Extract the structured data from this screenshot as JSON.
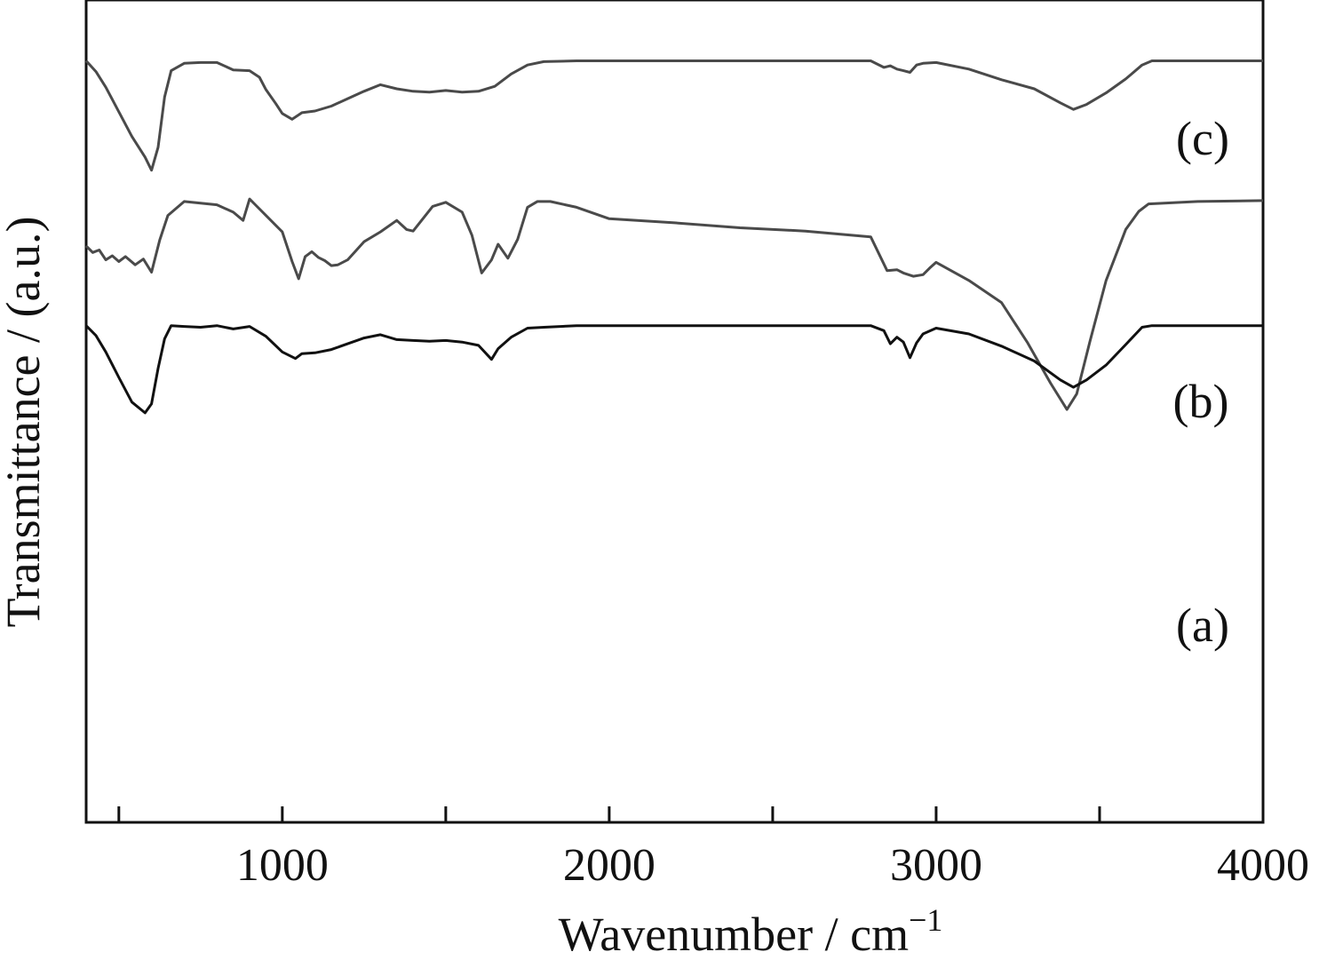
{
  "chart_data": {
    "type": "line",
    "xlabel": "Wavenumber / cm",
    "xlabel_superscript": "−1",
    "ylabel": "Transmittance / (a.u.)",
    "xlim": [
      400,
      4000
    ],
    "ylim": [
      0,
      100
    ],
    "x_major_ticks": [
      1000,
      2000,
      3000,
      4000
    ],
    "x_tick_labels": [
      "1000",
      "2000",
      "3000",
      "4000"
    ],
    "x_minor_ticks": [
      500,
      1500,
      2500,
      3500
    ],
    "grid": false,
    "legend": "none",
    "colors": {
      "a": "#4a4a4a",
      "b": "#111111",
      "c": "#4a4a4a",
      "frame": "#111111"
    },
    "series": [
      {
        "name": "(a)",
        "x": [
          400,
          420,
          440,
          460,
          480,
          500,
          520,
          550,
          575,
          600,
          625,
          650,
          700,
          750,
          800,
          850,
          880,
          900,
          920,
          950,
          1000,
          1030,
          1050,
          1070,
          1090,
          1110,
          1130,
          1150,
          1170,
          1200,
          1250,
          1300,
          1350,
          1380,
          1400,
          1430,
          1460,
          1500,
          1550,
          1580,
          1610,
          1640,
          1660,
          1690,
          1720,
          1750,
          1780,
          1820,
          1900,
          2000,
          2200,
          2400,
          2600,
          2800,
          2850,
          2880,
          2900,
          2930,
          2960,
          2980,
          3000,
          3100,
          3200,
          3280,
          3350,
          3400,
          3430,
          3470,
          3520,
          3580,
          3620,
          3650,
          3800,
          4000
        ],
        "y": [
          70.1,
          69.3,
          69.6,
          68.4,
          68.9,
          68.2,
          68.8,
          67.8,
          68.5,
          66.9,
          70.8,
          73.8,
          75.5,
          75.3,
          75.1,
          74.2,
          73.2,
          75.8,
          75.0,
          73.8,
          71.8,
          68.2,
          66.1,
          68.8,
          69.4,
          68.7,
          68.3,
          67.7,
          67.8,
          68.4,
          70.6,
          71.8,
          73.2,
          72.1,
          71.9,
          73.4,
          74.9,
          75.4,
          74.2,
          71.4,
          66.8,
          68.4,
          70.3,
          68.6,
          70.9,
          74.8,
          75.5,
          75.5,
          74.8,
          73.4,
          72.9,
          72.3,
          71.9,
          71.2,
          67.1,
          67.2,
          66.8,
          66.4,
          66.6,
          67.4,
          68.1,
          65.9,
          63.2,
          58.3,
          53.4,
          50.2,
          52.1,
          58.4,
          65.9,
          72.1,
          74.3,
          75.2,
          75.5,
          75.6
        ]
      },
      {
        "name": "(b)",
        "x": [
          400,
          430,
          460,
          500,
          540,
          580,
          600,
          620,
          640,
          660,
          700,
          750,
          800,
          850,
          900,
          950,
          1000,
          1040,
          1060,
          1100,
          1150,
          1200,
          1250,
          1300,
          1350,
          1400,
          1450,
          1500,
          1550,
          1600,
          1640,
          1660,
          1700,
          1750,
          1800,
          1900,
          2000,
          2400,
          2800,
          2840,
          2860,
          2880,
          2900,
          2920,
          2940,
          2960,
          3000,
          3100,
          3200,
          3300,
          3380,
          3420,
          3460,
          3520,
          3580,
          3630,
          3660,
          3800,
          4000
        ],
        "y": [
          60.4,
          59.2,
          57.2,
          54.1,
          51.1,
          49.8,
          50.9,
          55.2,
          58.8,
          60.4,
          60.3,
          60.2,
          60.4,
          60.0,
          60.3,
          59.1,
          57.2,
          56.4,
          57.0,
          57.1,
          57.5,
          58.2,
          58.9,
          59.3,
          58.7,
          58.6,
          58.5,
          58.6,
          58.4,
          58.0,
          56.3,
          57.6,
          59.0,
          60.1,
          60.2,
          60.4,
          60.4,
          60.4,
          60.4,
          59.8,
          58.2,
          59.0,
          58.4,
          56.5,
          58.3,
          59.4,
          60.1,
          59.4,
          57.9,
          56.1,
          53.8,
          52.9,
          53.8,
          55.6,
          58.1,
          60.2,
          60.4,
          60.4,
          60.4
        ]
      },
      {
        "name": "(c)",
        "x": [
          400,
          430,
          460,
          500,
          540,
          580,
          600,
          620,
          640,
          660,
          700,
          750,
          800,
          850,
          900,
          930,
          950,
          980,
          1000,
          1030,
          1060,
          1100,
          1150,
          1200,
          1250,
          1300,
          1350,
          1400,
          1450,
          1500,
          1550,
          1600,
          1650,
          1700,
          1750,
          1800,
          1900,
          2000,
          2400,
          2800,
          2840,
          2860,
          2880,
          2900,
          2920,
          2940,
          2960,
          3000,
          3100,
          3200,
          3300,
          3380,
          3420,
          3460,
          3520,
          3580,
          3630,
          3660,
          3800,
          4000
        ],
        "y": [
          92.6,
          91.3,
          89.4,
          86.4,
          83.4,
          80.9,
          79.3,
          82.1,
          88.2,
          91.4,
          92.3,
          92.4,
          92.4,
          91.5,
          91.4,
          90.6,
          89.1,
          87.4,
          86.2,
          85.5,
          86.3,
          86.5,
          87.1,
          88.0,
          88.9,
          89.7,
          89.2,
          88.9,
          88.8,
          89.0,
          88.8,
          88.9,
          89.5,
          91.0,
          92.1,
          92.5,
          92.6,
          92.6,
          92.6,
          92.6,
          91.8,
          92.0,
          91.6,
          91.4,
          91.2,
          92.1,
          92.3,
          92.4,
          91.6,
          90.3,
          89.2,
          87.5,
          86.7,
          87.3,
          88.7,
          90.4,
          92.1,
          92.6,
          92.6,
          92.6
        ]
      }
    ]
  }
}
